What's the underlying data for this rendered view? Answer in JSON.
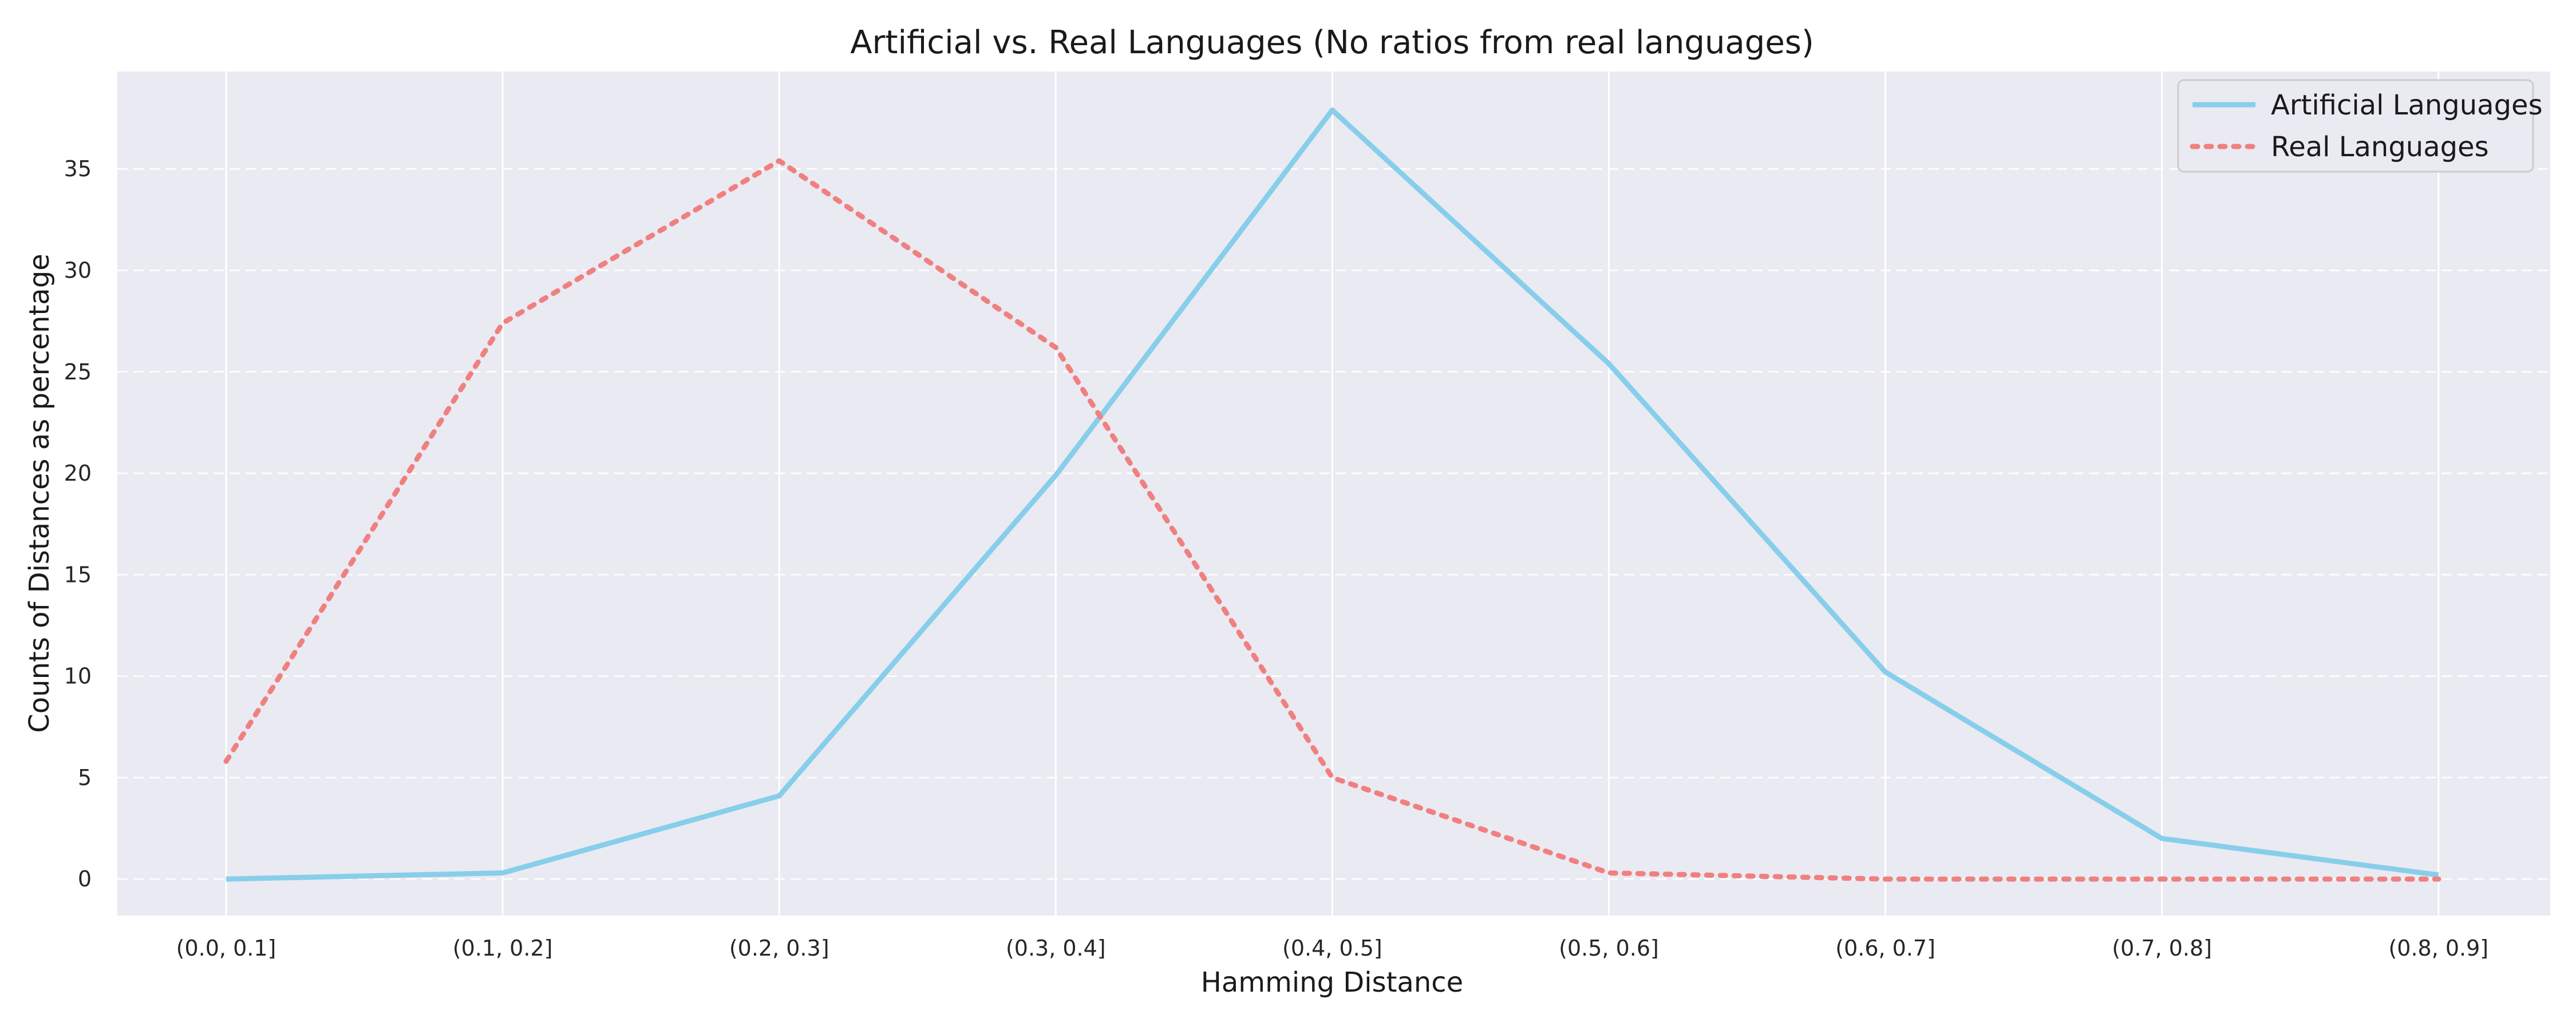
{
  "chart_data": {
    "type": "line",
    "title": "Artificial vs. Real Languages (No ratios from real languages)",
    "xlabel": "Hamming Distance",
    "ylabel": "Counts of Distances as percentage",
    "categories": [
      "(0.0, 0.1]",
      "(0.1, 0.2]",
      "(0.2, 0.3]",
      "(0.3, 0.4]",
      "(0.4, 0.5]",
      "(0.5, 0.6]",
      "(0.6, 0.7]",
      "(0.7, 0.8]",
      "(0.8, 0.9]"
    ],
    "yticks": [
      0,
      5,
      10,
      15,
      20,
      25,
      30,
      35
    ],
    "ylim": [
      -1.8,
      39.8
    ],
    "grid": true,
    "legend_position": "top-right",
    "series": [
      {
        "name": "Artificial Languages",
        "color": "#87ceeb",
        "style": "solid",
        "values": [
          0.0,
          0.3,
          4.1,
          19.9,
          37.9,
          25.4,
          10.2,
          2.0,
          0.2
        ]
      },
      {
        "name": "Real Languages",
        "color": "#f08080",
        "style": "dotted",
        "values": [
          5.8,
          27.4,
          35.4,
          26.2,
          5.0,
          0.3,
          0.0,
          0.0,
          0.0
        ]
      }
    ]
  },
  "colors": {
    "plot_background": "#eaeaf2",
    "grid_line": "#ffffff"
  }
}
